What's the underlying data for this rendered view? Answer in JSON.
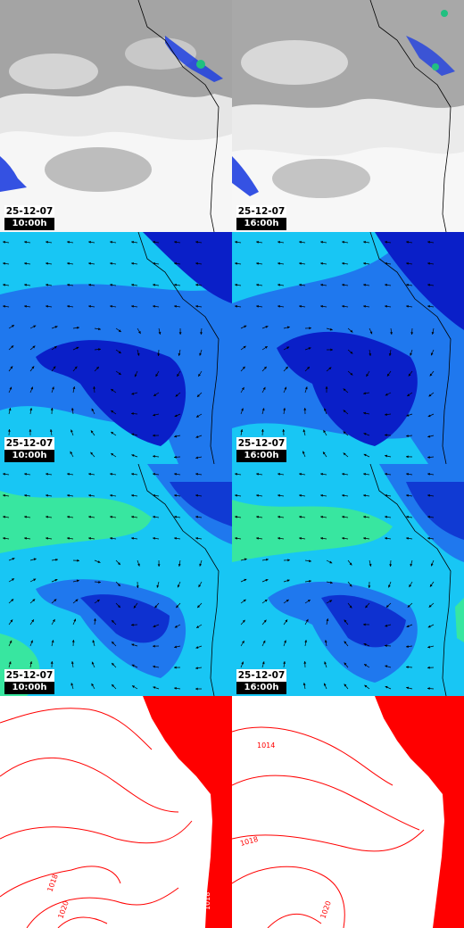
{
  "panels": [
    {
      "type": "cloud",
      "date": "25-12-07",
      "time": "10:00h"
    },
    {
      "type": "cloud",
      "date": "25-12-07",
      "time": "16:00h"
    },
    {
      "type": "wind-dark",
      "date": "25-12-07",
      "time": "10:00h"
    },
    {
      "type": "wind-dark",
      "date": "25-12-07",
      "time": "16:00h"
    },
    {
      "type": "wind-light",
      "date": "25-12-07",
      "time": "10:00h"
    },
    {
      "type": "wind-light",
      "date": "25-12-07",
      "time": "16:00h"
    },
    {
      "type": "pressure",
      "isobar_labels": [
        "1018",
        "1020",
        "1018"
      ]
    },
    {
      "type": "pressure",
      "isobar_labels": [
        "1014",
        "1018",
        "1020"
      ]
    }
  ],
  "colors": {
    "cloud_gray": "#a8a8a8",
    "cloud_white": "#f4f4f4",
    "precip_blue": "#1f3fe0",
    "wind_deep": "#0a1fc8",
    "wind_mid": "#1f78ee",
    "wind_cyan": "#18c6f4",
    "wind_green": "#38e6a0",
    "isobar_red": "#ff0000",
    "coast_line": "#000000"
  },
  "icons": [
    "wind-arrow-icon",
    "coastline"
  ]
}
